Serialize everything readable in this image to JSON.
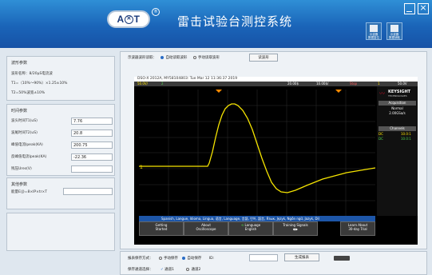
{
  "header": {
    "logo_text": "AT",
    "title": "雷击试验台测控系统",
    "btn1_label": "示波器\n数据复位",
    "btn2_label": "示波器\n数据读取"
  },
  "waveform_params": {
    "title": "波形参数",
    "name": "波形名称：8/20μS电流波",
    "t1": "T1=（10%～90%）×1.25±10%",
    "t2": "T2=50%波宽±10%"
  },
  "time_params": {
    "title": "时间参数",
    "rise_label": "波头时间T1(uS)",
    "rise_value": "7.76",
    "half_label": "波尾时间T2(uS)",
    "half_value": "20.8",
    "peak_label": "峰值电流Ipeak(KA)",
    "peak_value": "200.75",
    "reverse_label": "反峰值电流Ipeak(KA)",
    "reverse_value": "-22.36",
    "residual_label": "残压Ures(V)",
    "residual_value": ""
  },
  "other_params": {
    "title": "其他参数",
    "energy_label": "能量E(J)=8×IP×tr×T",
    "energy_value": ""
  },
  "read_mode": {
    "label": "示波器波形读取：",
    "auto": "自动读取波形",
    "manual": "手动读取波形",
    "read_button": "读波形"
  },
  "scope": {
    "header_line": "DSO-X 2012A, MY58104803: Tue Mar 12 11:36:37 2019",
    "ch1_scale": "50.0V/",
    "ch2_scale": "2",
    "time_offset": "20.00$",
    "time_scale": "10.00$/",
    "run_state": "Stop",
    "trig": "1",
    "trig_level": "50.0V",
    "brand": "KEYSIGHT",
    "brand_sub": "TECHNOLOGIES",
    "acq_title": "Acquisition",
    "acq_mode": "Normal",
    "acq_rate": "2.00GSa/s",
    "channels_title": "Channels",
    "ch1_coupling": "DC",
    "ch1_probe": "10.0:1",
    "ch2_coupling": "DC",
    "ch2_probe": "10.0:1",
    "lang_bar": "Spanish, Langue, Idioma, Lingua, 语言, Language, 言語, 언어, 語言, Язык, Język, Ngôn ngữ, Jazyk, Dil",
    "softkeys": [
      {
        "top": "Getting",
        "bottom": "Started"
      },
      {
        "top": "About",
        "bottom": "Oscilloscope"
      },
      {
        "top": "Language",
        "bottom": "English"
      },
      {
        "top": "Training Signals",
        "bottom": ""
      },
      {
        "top": "Learn About",
        "bottom": "30-day Trial"
      }
    ]
  },
  "save": {
    "label": "报表保存方式：",
    "manual": "手动保存",
    "auto": "自动保存",
    "id_label": "ID:",
    "id_value": "",
    "report_button": "生成报表"
  },
  "channel": {
    "label": "保存通道选择：",
    "ch1": "通道1",
    "ch2": "通道2"
  }
}
